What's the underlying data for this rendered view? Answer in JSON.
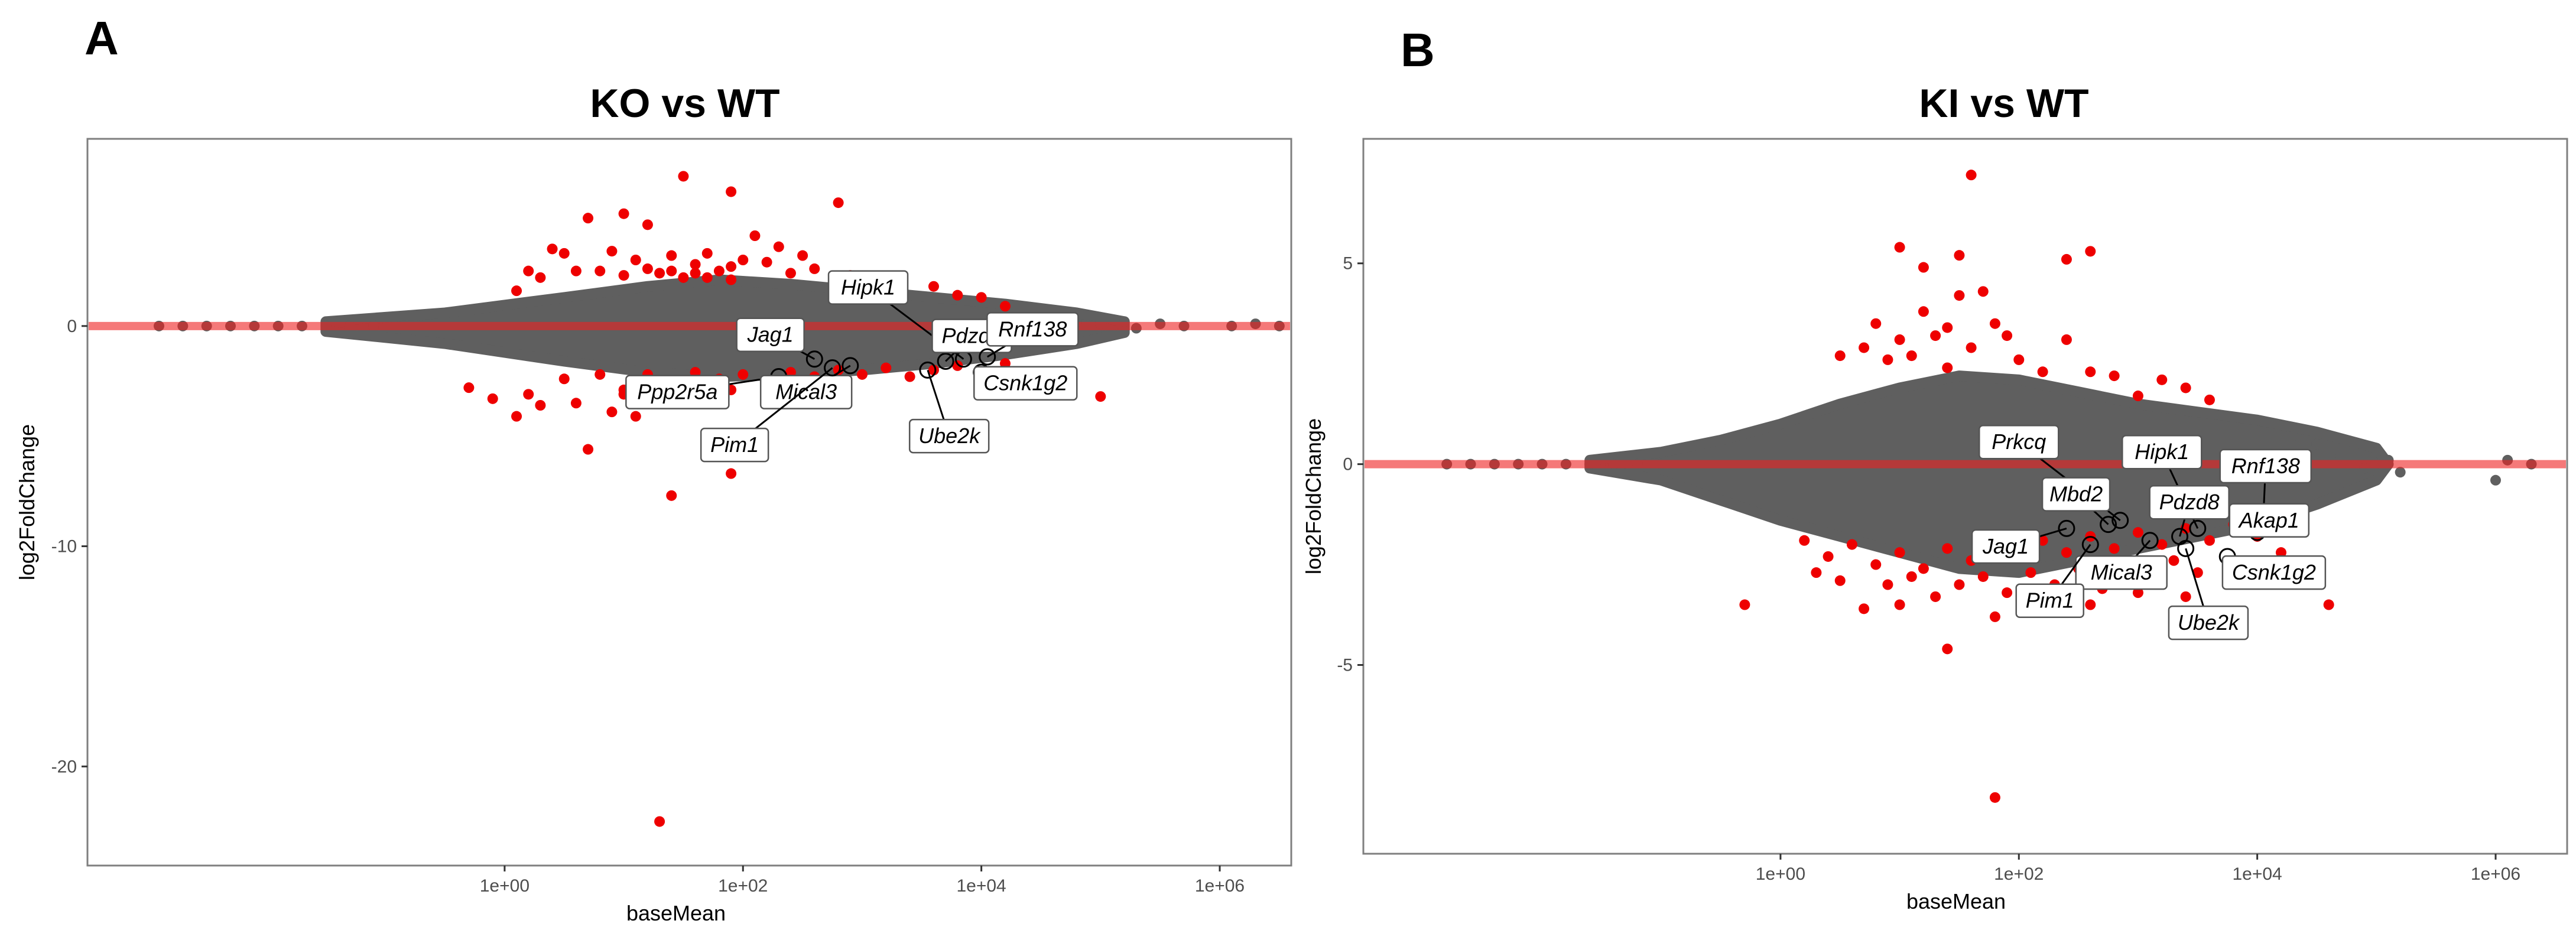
{
  "chart_data": [
    {
      "type": "scatter",
      "panel": "A",
      "title": "KO vs WT",
      "xlabel": "baseMean",
      "ylabel": "log2FoldChange",
      "x_scale": "log10",
      "xlim_log10": [
        -3.5,
        6.6
      ],
      "ylim": [
        -24.5,
        8.5
      ],
      "x_ticks": [
        {
          "value": 0,
          "label": "1e+00"
        },
        {
          "value": 2,
          "label": "1e+02"
        },
        {
          "value": 4,
          "label": "1e+04"
        },
        {
          "value": 6,
          "label": "1e+06"
        }
      ],
      "y_ticks": [
        {
          "value": 0,
          "label": "0"
        },
        {
          "value": -10,
          "label": "-10"
        },
        {
          "value": -20,
          "label": "-20"
        }
      ],
      "reference_line_y": 0,
      "cloud": [
        [
          -1.5,
          0.2
        ],
        [
          -0.5,
          0.6
        ],
        [
          0.5,
          1.3
        ],
        [
          1.2,
          1.8
        ],
        [
          1.8,
          2.1
        ],
        [
          2.4,
          1.9
        ],
        [
          3.0,
          1.6
        ],
        [
          3.6,
          1.3
        ],
        [
          4.2,
          1.0
        ],
        [
          4.8,
          0.6
        ],
        [
          5.2,
          0.2
        ],
        [
          5.2,
          -0.3
        ],
        [
          4.8,
          -0.8
        ],
        [
          4.2,
          -1.3
        ],
        [
          3.6,
          -1.7
        ],
        [
          3.0,
          -2.0
        ],
        [
          2.4,
          -2.2
        ],
        [
          1.8,
          -2.3
        ],
        [
          1.2,
          -2.1
        ],
        [
          0.5,
          -1.6
        ],
        [
          -0.5,
          -0.8
        ],
        [
          -1.5,
          -0.25
        ]
      ],
      "grey_points": [
        [
          -2.9,
          0
        ],
        [
          -2.7,
          0
        ],
        [
          -2.5,
          0
        ],
        [
          -2.3,
          0
        ],
        [
          -2.1,
          0
        ],
        [
          -1.9,
          0
        ],
        [
          -1.7,
          0
        ],
        [
          -1.5,
          0
        ],
        [
          -1.3,
          0
        ],
        [
          -1.1,
          0
        ],
        [
          5.0,
          0.1
        ],
        [
          5.2,
          0.2
        ],
        [
          5.3,
          -0.1
        ],
        [
          5.5,
          0.1
        ],
        [
          5.7,
          0.0
        ],
        [
          6.1,
          0.0
        ],
        [
          6.3,
          0.1
        ],
        [
          6.5,
          0.0
        ],
        [
          4.7,
          -0.2
        ],
        [
          4.8,
          0.2
        ]
      ],
      "red_points": [
        [
          1.0,
          2.3
        ],
        [
          1.2,
          2.6
        ],
        [
          1.4,
          3.2
        ],
        [
          1.6,
          2.8
        ],
        [
          1.8,
          2.5
        ],
        [
          2.0,
          3.0
        ],
        [
          2.2,
          2.9
        ],
        [
          2.4,
          2.4
        ],
        [
          2.6,
          2.6
        ],
        [
          1.7,
          2.2
        ],
        [
          1.9,
          2.7
        ],
        [
          1.3,
          2.4
        ],
        [
          1.1,
          3.0
        ],
        [
          1.5,
          2.2
        ],
        [
          2.5,
          3.2
        ],
        [
          0.8,
          2.5
        ],
        [
          0.9,
          3.4
        ],
        [
          0.7,
          4.9
        ],
        [
          0.6,
          2.5
        ],
        [
          0.5,
          3.3
        ],
        [
          0.4,
          3.5
        ],
        [
          1.2,
          4.6
        ],
        [
          1.4,
          2.5
        ],
        [
          1.5,
          6.8
        ],
        [
          1.9,
          6.1
        ],
        [
          2.8,
          5.6
        ],
        [
          2.9,
          2.3
        ],
        [
          3.1,
          1.9
        ],
        [
          1.0,
          5.1
        ],
        [
          0.3,
          2.2
        ],
        [
          0.2,
          2.5
        ],
        [
          0.1,
          1.6
        ],
        [
          1.6,
          2.4
        ],
        [
          1.7,
          3.3
        ],
        [
          2.1,
          4.1
        ],
        [
          2.3,
          3.6
        ],
        [
          1.9,
          2.1
        ],
        [
          3.6,
          1.8
        ],
        [
          3.8,
          1.4
        ],
        [
          4.0,
          1.3
        ],
        [
          4.2,
          0.9
        ],
        [
          0.5,
          -2.4
        ],
        [
          0.8,
          -2.2
        ],
        [
          1.0,
          -2.9
        ],
        [
          1.2,
          -2.2
        ],
        [
          1.4,
          -2.6
        ],
        [
          1.6,
          -2.1
        ],
        [
          1.8,
          -2.4
        ],
        [
          2.0,
          -2.2
        ],
        [
          2.2,
          -2.5
        ],
        [
          2.4,
          -2.1
        ],
        [
          2.6,
          -2.3
        ],
        [
          2.8,
          -2.0
        ],
        [
          3.0,
          -2.2
        ],
        [
          3.2,
          -1.9
        ],
        [
          3.4,
          -2.3
        ],
        [
          3.6,
          -2.0
        ],
        [
          3.8,
          -1.8
        ],
        [
          4.0,
          -2.1
        ],
        [
          4.2,
          -1.7
        ],
        [
          0.2,
          -3.1
        ],
        [
          0.6,
          -3.5
        ],
        [
          0.9,
          -3.9
        ],
        [
          1.1,
          -4.1
        ],
        [
          1.3,
          -3.2
        ],
        [
          1.5,
          -3.0
        ],
        [
          1.7,
          -2.7
        ],
        [
          1.9,
          -2.9
        ],
        [
          -0.3,
          -2.8
        ],
        [
          -0.1,
          -3.3
        ],
        [
          0.1,
          -4.1
        ],
        [
          0.7,
          -5.6
        ],
        [
          1.4,
          -7.7
        ],
        [
          1.9,
          -6.7
        ],
        [
          0.3,
          -3.6
        ],
        [
          1.0,
          -3.1
        ],
        [
          2.5,
          -2.8
        ],
        [
          4.6,
          -2.9
        ],
        [
          5.0,
          -3.2
        ],
        [
          4.4,
          -2.4
        ],
        [
          1.3,
          -22.5
        ]
      ],
      "labels": [
        {
          "text": "Hipk1",
          "pt": [
            3.85,
            -1.5
          ],
          "at": [
            3.05,
            1.75
          ]
        },
        {
          "text": "Jag1",
          "pt": [
            2.6,
            -1.5
          ],
          "at": [
            2.23,
            -0.4
          ]
        },
        {
          "text": "Pdzd8",
          "pt": [
            3.7,
            -1.6
          ],
          "at": [
            3.92,
            -0.45
          ]
        },
        {
          "text": "Rnf138",
          "pt": [
            4.05,
            -1.4
          ],
          "at": [
            4.43,
            -0.15
          ]
        },
        {
          "text": "Ppp2r5a",
          "pt": [
            2.3,
            -2.3
          ],
          "at": [
            1.45,
            -3.0
          ]
        },
        {
          "text": "Mical3",
          "pt": [
            2.9,
            -1.8
          ],
          "at": [
            2.53,
            -3.0
          ]
        },
        {
          "text": "Csnk1g2",
          "pt": [
            4.0,
            -2.1
          ],
          "at": [
            4.37,
            -2.6
          ]
        },
        {
          "text": "Pim1",
          "pt": [
            2.75,
            -1.9
          ],
          "at": [
            1.93,
            -5.4
          ]
        },
        {
          "text": "Ube2k",
          "pt": [
            3.55,
            -2.0
          ],
          "at": [
            3.73,
            -5.0
          ]
        }
      ]
    },
    {
      "type": "scatter",
      "panel": "B",
      "title": "KI vs WT",
      "xlabel": "baseMean",
      "ylabel": "log2FoldChange",
      "x_scale": "log10",
      "xlim_log10": [
        -3.5,
        6.6
      ],
      "ylim": [
        -9.7,
        8.1
      ],
      "x_ticks": [
        {
          "value": 0,
          "label": "1e+00"
        },
        {
          "value": 2,
          "label": "1e+02"
        },
        {
          "value": 4,
          "label": "1e+04"
        },
        {
          "value": 6,
          "label": "1e+06"
        }
      ],
      "y_ticks": [
        {
          "value": 5,
          "label": "5"
        },
        {
          "value": 0,
          "label": "0"
        },
        {
          "value": -5,
          "label": "-5"
        }
      ],
      "reference_line_y": 0,
      "cloud": [
        [
          -1.6,
          0.1
        ],
        [
          -1.0,
          0.3
        ],
        [
          -0.5,
          0.6
        ],
        [
          0.0,
          1.0
        ],
        [
          0.5,
          1.5
        ],
        [
          1.0,
          1.9
        ],
        [
          1.5,
          2.2
        ],
        [
          2.0,
          2.1
        ],
        [
          2.5,
          1.8
        ],
        [
          3.0,
          1.5
        ],
        [
          3.5,
          1.3
        ],
        [
          4.0,
          1.1
        ],
        [
          4.5,
          0.8
        ],
        [
          5.0,
          0.4
        ],
        [
          5.1,
          0.0
        ],
        [
          5.0,
          -0.4
        ],
        [
          4.5,
          -1.0
        ],
        [
          4.0,
          -1.5
        ],
        [
          3.5,
          -1.8
        ],
        [
          3.0,
          -2.1
        ],
        [
          2.5,
          -2.4
        ],
        [
          2.0,
          -2.7
        ],
        [
          1.5,
          -2.6
        ],
        [
          1.0,
          -2.2
        ],
        [
          0.5,
          -1.8
        ],
        [
          0.0,
          -1.4
        ],
        [
          -0.5,
          -0.9
        ],
        [
          -1.0,
          -0.4
        ],
        [
          -1.6,
          -0.1
        ]
      ],
      "grey_points": [
        [
          -2.8,
          0
        ],
        [
          -2.6,
          0
        ],
        [
          -2.4,
          0
        ],
        [
          -2.2,
          0
        ],
        [
          -2.0,
          0
        ],
        [
          -1.8,
          0
        ],
        [
          -1.6,
          0
        ],
        [
          -1.4,
          0
        ],
        [
          -1.2,
          0
        ],
        [
          -1.0,
          0
        ],
        [
          4.7,
          0.2
        ],
        [
          4.9,
          -0.1
        ],
        [
          5.0,
          0.3
        ],
        [
          5.1,
          0.1
        ],
        [
          5.2,
          -0.2
        ],
        [
          4.5,
          0.5
        ],
        [
          6.0,
          -0.4
        ],
        [
          6.1,
          0.1
        ],
        [
          6.3,
          0.0
        ],
        [
          4.3,
          0.7
        ]
      ],
      "red_points": [
        [
          1.0,
          3.1
        ],
        [
          1.2,
          3.8
        ],
        [
          1.4,
          3.4
        ],
        [
          1.6,
          2.9
        ],
        [
          1.8,
          3.5
        ],
        [
          1.5,
          4.2
        ],
        [
          1.3,
          3.2
        ],
        [
          1.7,
          4.3
        ],
        [
          1.1,
          2.7
        ],
        [
          2.0,
          2.6
        ],
        [
          2.2,
          2.3
        ],
        [
          2.4,
          3.1
        ],
        [
          2.6,
          2.3
        ],
        [
          2.8,
          2.2
        ],
        [
          1.9,
          3.2
        ],
        [
          0.9,
          2.6
        ],
        [
          0.7,
          2.9
        ],
        [
          0.5,
          2.7
        ],
        [
          1.5,
          5.2
        ],
        [
          1.0,
          5.4
        ],
        [
          1.2,
          4.9
        ],
        [
          2.4,
          5.1
        ],
        [
          2.6,
          5.3
        ],
        [
          1.6,
          7.2
        ],
        [
          0.8,
          3.5
        ],
        [
          1.4,
          2.4
        ],
        [
          3.2,
          2.1
        ],
        [
          3.4,
          1.9
        ],
        [
          3.0,
          1.7
        ],
        [
          3.6,
          1.6
        ],
        [
          0.2,
          -1.9
        ],
        [
          0.4,
          -2.3
        ],
        [
          0.6,
          -2.0
        ],
        [
          0.8,
          -2.5
        ],
        [
          1.0,
          -2.2
        ],
        [
          1.2,
          -2.6
        ],
        [
          1.4,
          -2.1
        ],
        [
          1.6,
          -2.4
        ],
        [
          1.8,
          -2.0
        ],
        [
          2.0,
          -2.3
        ],
        [
          2.2,
          -1.9
        ],
        [
          2.4,
          -2.2
        ],
        [
          2.6,
          -1.8
        ],
        [
          2.8,
          -2.1
        ],
        [
          3.0,
          -1.7
        ],
        [
          3.2,
          -2.0
        ],
        [
          3.4,
          -1.6
        ],
        [
          3.6,
          -1.9
        ],
        [
          3.8,
          -1.5
        ],
        [
          4.0,
          -1.8
        ],
        [
          0.3,
          -2.7
        ],
        [
          0.5,
          -2.9
        ],
        [
          0.9,
          -3.0
        ],
        [
          1.1,
          -2.8
        ],
        [
          1.3,
          -3.3
        ],
        [
          1.5,
          -3.0
        ],
        [
          1.7,
          -2.8
        ],
        [
          1.9,
          -3.2
        ],
        [
          2.1,
          -2.7
        ],
        [
          2.3,
          -3.0
        ],
        [
          2.5,
          -2.6
        ],
        [
          2.7,
          -3.1
        ],
        [
          2.9,
          -2.5
        ],
        [
          3.1,
          -2.8
        ],
        [
          3.3,
          -2.4
        ],
        [
          3.5,
          -2.7
        ],
        [
          0.7,
          -3.6
        ],
        [
          1.0,
          -3.5
        ],
        [
          1.4,
          -4.6
        ],
        [
          1.8,
          -3.8
        ],
        [
          2.2,
          -3.4
        ],
        [
          2.6,
          -3.5
        ],
        [
          3.0,
          -3.2
        ],
        [
          3.4,
          -3.3
        ],
        [
          3.8,
          -2.6
        ],
        [
          4.2,
          -2.2
        ],
        [
          4.4,
          -2.6
        ],
        [
          4.6,
          -3.5
        ],
        [
          -0.3,
          -3.5
        ],
        [
          1.8,
          -8.3
        ]
      ],
      "labels": [
        {
          "text": "Prkcq",
          "pt": [
            2.85,
            -1.4
          ],
          "at": [
            2.0,
            0.55
          ]
        },
        {
          "text": "Hipk1",
          "pt": [
            3.5,
            -1.6
          ],
          "at": [
            3.2,
            0.3
          ]
        },
        {
          "text": "Rnf138",
          "pt": [
            4.05,
            -1.4
          ],
          "at": [
            4.07,
            -0.05
          ]
        },
        {
          "text": "Mbd2",
          "pt": [
            2.75,
            -1.5
          ],
          "at": [
            2.48,
            -0.75
          ]
        },
        {
          "text": "Pdzd8",
          "pt": [
            3.35,
            -1.8
          ],
          "at": [
            3.43,
            -0.95
          ]
        },
        {
          "text": "Akap1",
          "pt": [
            4.0,
            -1.7
          ],
          "at": [
            4.1,
            -1.4
          ]
        },
        {
          "text": "Jag1",
          "pt": [
            2.4,
            -1.6
          ],
          "at": [
            1.89,
            -2.05
          ]
        },
        {
          "text": "Mical3",
          "pt": [
            3.1,
            -1.9
          ],
          "at": [
            2.86,
            -2.7
          ]
        },
        {
          "text": "Csnk1g2",
          "pt": [
            3.75,
            -2.3
          ],
          "at": [
            4.14,
            -2.7
          ]
        },
        {
          "text": "Pim1",
          "pt": [
            2.6,
            -2.0
          ],
          "at": [
            2.26,
            -3.4
          ]
        },
        {
          "text": "Ube2k",
          "pt": [
            3.4,
            -2.1
          ],
          "at": [
            3.59,
            -3.95
          ]
        }
      ]
    }
  ],
  "panel_letters": [
    "A",
    "B"
  ]
}
